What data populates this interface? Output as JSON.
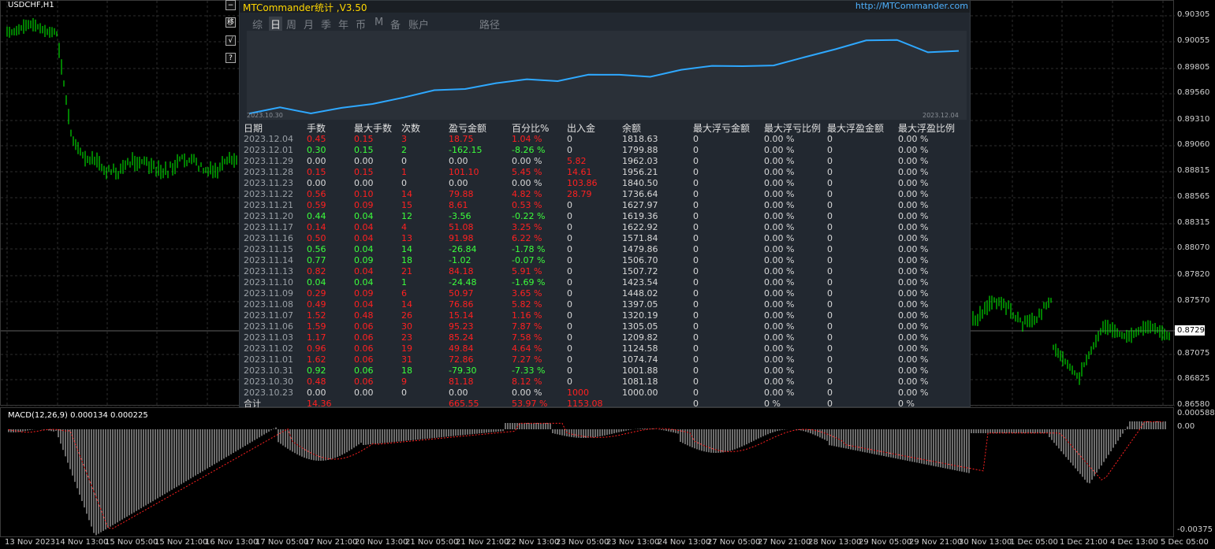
{
  "symbol": "USDCHF,H1",
  "price_axis": [
    "0.90305",
    "0.90055",
    "0.89805",
    "0.89560",
    "0.89310",
    "0.89060",
    "0.88815",
    "0.88565",
    "0.88315",
    "0.88070",
    "0.87820",
    "0.87570",
    "0.87294",
    "0.87075",
    "0.86825",
    "0.86580"
  ],
  "current_price": "0.87294",
  "macd": {
    "title": "MACD(12,26,9) 0.000134 0.000225",
    "axis_top": "0.000588",
    "axis_zero": "0.00",
    "axis_bottom": "-0.00375"
  },
  "time_axis": [
    "13 Nov 2023",
    "14 Nov 13:00",
    "15 Nov 05:00",
    "15 Nov 21:00",
    "16 Nov 13:00",
    "17 Nov 05:00",
    "17 Nov 21:00",
    "20 Nov 13:00",
    "21 Nov 05:00",
    "21 Nov 21:00",
    "22 Nov 13:00",
    "23 Nov 05:00",
    "23 Nov 13:00",
    "24 Nov 13:00",
    "27 Nov 05:00",
    "27 Nov 21:00",
    "28 Nov 13:00",
    "29 Nov 05:00",
    "29 Nov 21:00",
    "30 Nov 13:00",
    "1 Dec 05:00",
    "1 Dec 21:00",
    "4 Dec 13:00",
    "5 Dec 05:00"
  ],
  "side_buttons": [
    "−",
    "移",
    "√",
    "?"
  ],
  "panel": {
    "title": "MTCommander统计 ,V3.50",
    "link": "http://MTCommander.com",
    "tabs": [
      "综",
      "日",
      "周",
      "月",
      "季",
      "年",
      "币",
      "M",
      "备",
      "账户",
      "路径"
    ],
    "active_tab": "日",
    "equity": {
      "start_label": "2023.10.30",
      "end_label": "2023.12.04",
      "line_color": "#2ea8ff",
      "values": [
        1000.0,
        1081.18,
        1001.88,
        1074.74,
        1124.58,
        1209.82,
        1305.05,
        1320.19,
        1397.05,
        1448.02,
        1423.54,
        1507.72,
        1506.7,
        1479.86,
        1571.84,
        1622.92,
        1619.36,
        1627.97,
        1736.64,
        1840.5,
        1956.21,
        1962.03,
        1799.88,
        1818.63
      ]
    },
    "headers": [
      "日期",
      "手数",
      "最大手数",
      "次数",
      "盈亏金额",
      "百分比%",
      "出入金",
      "余额",
      "最大浮亏金额",
      "最大浮亏比例",
      "最大浮盈金额",
      "最大浮盈比例"
    ],
    "rows": [
      [
        "2023.12.04",
        "0.45",
        "0.15",
        "3",
        "18.75",
        "1.04 %",
        "0",
        "1818.63",
        "0",
        "0.00 %",
        "0",
        "0.00 %"
      ],
      [
        "2023.12.01",
        "0.30",
        "0.15",
        "2",
        "-162.15",
        "-8.26 %",
        "0",
        "1799.88",
        "0",
        "0.00 %",
        "0",
        "0.00 %"
      ],
      [
        "2023.11.29",
        "0.00",
        "0.00",
        "0",
        "0.00",
        "0.00 %",
        "5.82",
        "1962.03",
        "0",
        "0.00 %",
        "0",
        "0.00 %"
      ],
      [
        "2023.11.28",
        "0.15",
        "0.15",
        "1",
        "101.10",
        "5.45 %",
        "14.61",
        "1956.21",
        "0",
        "0.00 %",
        "0",
        "0.00 %"
      ],
      [
        "2023.11.23",
        "0.00",
        "0.00",
        "0",
        "0.00",
        "0.00 %",
        "103.86",
        "1840.50",
        "0",
        "0.00 %",
        "0",
        "0.00 %"
      ],
      [
        "2023.11.22",
        "0.56",
        "0.10",
        "14",
        "79.88",
        "4.82 %",
        "28.79",
        "1736.64",
        "0",
        "0.00 %",
        "0",
        "0.00 %"
      ],
      [
        "2023.11.21",
        "0.59",
        "0.09",
        "15",
        "8.61",
        "0.53 %",
        "0",
        "1627.97",
        "0",
        "0.00 %",
        "0",
        "0.00 %"
      ],
      [
        "2023.11.20",
        "0.44",
        "0.04",
        "12",
        "-3.56",
        "-0.22 %",
        "0",
        "1619.36",
        "0",
        "0.00 %",
        "0",
        "0.00 %"
      ],
      [
        "2023.11.17",
        "0.14",
        "0.04",
        "4",
        "51.08",
        "3.25 %",
        "0",
        "1622.92",
        "0",
        "0.00 %",
        "0",
        "0.00 %"
      ],
      [
        "2023.11.16",
        "0.50",
        "0.04",
        "13",
        "91.98",
        "6.22 %",
        "0",
        "1571.84",
        "0",
        "0.00 %",
        "0",
        "0.00 %"
      ],
      [
        "2023.11.15",
        "0.56",
        "0.04",
        "14",
        "-26.84",
        "-1.78 %",
        "0",
        "1479.86",
        "0",
        "0.00 %",
        "0",
        "0.00 %"
      ],
      [
        "2023.11.14",
        "0.77",
        "0.09",
        "18",
        "-1.02",
        "-0.07 %",
        "0",
        "1506.70",
        "0",
        "0.00 %",
        "0",
        "0.00 %"
      ],
      [
        "2023.11.13",
        "0.82",
        "0.04",
        "21",
        "84.18",
        "5.91 %",
        "0",
        "1507.72",
        "0",
        "0.00 %",
        "0",
        "0.00 %"
      ],
      [
        "2023.11.10",
        "0.04",
        "0.04",
        "1",
        "-24.48",
        "-1.69 %",
        "0",
        "1423.54",
        "0",
        "0.00 %",
        "0",
        "0.00 %"
      ],
      [
        "2023.11.09",
        "0.29",
        "0.09",
        "6",
        "50.97",
        "3.65 %",
        "0",
        "1448.02",
        "0",
        "0.00 %",
        "0",
        "0.00 %"
      ],
      [
        "2023.11.08",
        "0.49",
        "0.04",
        "14",
        "76.86",
        "5.82 %",
        "0",
        "1397.05",
        "0",
        "0.00 %",
        "0",
        "0.00 %"
      ],
      [
        "2023.11.07",
        "1.52",
        "0.48",
        "26",
        "15.14",
        "1.16 %",
        "0",
        "1320.19",
        "0",
        "0.00 %",
        "0",
        "0.00 %"
      ],
      [
        "2023.11.06",
        "1.59",
        "0.06",
        "30",
        "95.23",
        "7.87 %",
        "0",
        "1305.05",
        "0",
        "0.00 %",
        "0",
        "0.00 %"
      ],
      [
        "2023.11.03",
        "1.17",
        "0.06",
        "23",
        "85.24",
        "7.58 %",
        "0",
        "1209.82",
        "0",
        "0.00 %",
        "0",
        "0.00 %"
      ],
      [
        "2023.11.02",
        "0.96",
        "0.06",
        "19",
        "49.84",
        "4.64 %",
        "0",
        "1124.58",
        "0",
        "0.00 %",
        "0",
        "0.00 %"
      ],
      [
        "2023.11.01",
        "1.62",
        "0.06",
        "31",
        "72.86",
        "7.27 %",
        "0",
        "1074.74",
        "0",
        "0.00 %",
        "0",
        "0.00 %"
      ],
      [
        "2023.10.31",
        "0.92",
        "0.06",
        "18",
        "-79.30",
        "-7.33 %",
        "0",
        "1001.88",
        "0",
        "0.00 %",
        "0",
        "0.00 %"
      ],
      [
        "2023.10.30",
        "0.48",
        "0.06",
        "9",
        "81.18",
        "8.12 %",
        "0",
        "1081.18",
        "0",
        "0.00 %",
        "0",
        "0.00 %"
      ],
      [
        "2023.10.23",
        "0.00",
        "0.00",
        "0",
        "0.00",
        "0.00 %",
        "1000",
        "1000.00",
        "0",
        "0.00 %",
        "0",
        "0.00 %"
      ]
    ],
    "total": [
      "合计",
      "14.36",
      "",
      "",
      "665.55",
      "53.97 %",
      "1153.08",
      "",
      "0",
      "0 %",
      "0",
      "0 %"
    ]
  },
  "colors": {
    "up": "#00ff00",
    "grid": "#3a3a3a",
    "loss": "#ff2020",
    "profit": "#3cff3c"
  }
}
